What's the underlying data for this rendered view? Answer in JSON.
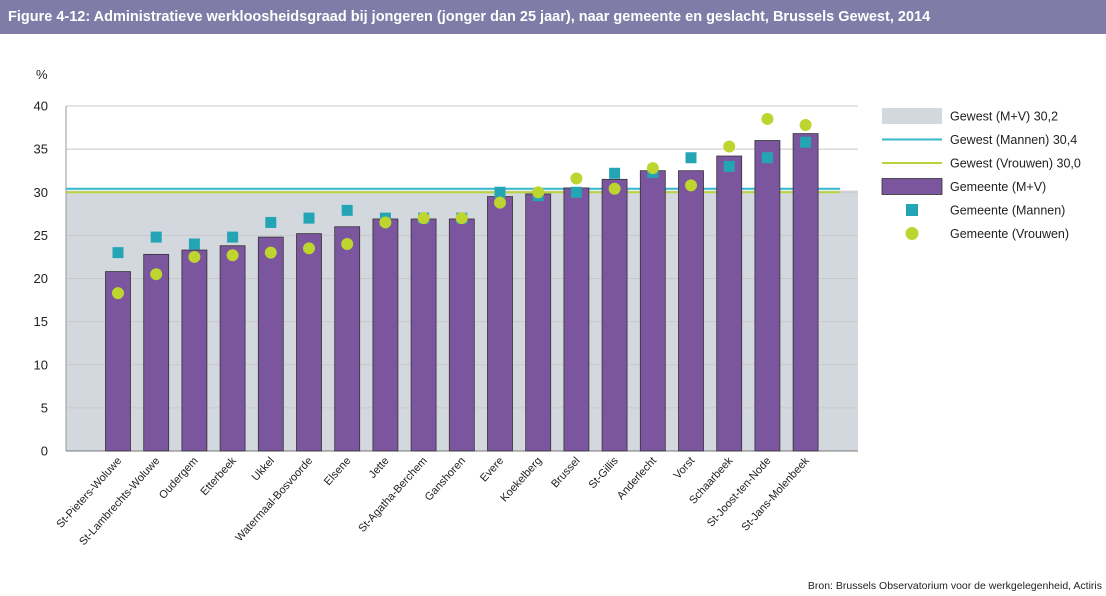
{
  "header": {
    "title": "Figure 4-12: Administratieve werkloosheidsgraad bij jongeren (jonger dan 25 jaar), naar gemeente en geslacht, Brussels Gewest, 2014"
  },
  "source": "Bron: Brussels Observatorium voor de werkgelegenheid, Actiris",
  "colors": {
    "header_bg": "#7f7da8",
    "bar": "#7b559e",
    "region_band": "#d3d8de",
    "line_men": "#33b8c9",
    "line_women": "#b7d43a",
    "marker_men": "#24a5b5",
    "marker_women": "#bed42f"
  },
  "chart_data": {
    "type": "bar",
    "title": "Figure 4-12: Administratieve werkloosheidsgraad bij jongeren (jonger dan 25 jaar), naar gemeente en geslacht, Brussels Gewest, 2014",
    "ylabel": "%",
    "xlabel": "",
    "ylim": [
      0,
      40
    ],
    "yticks": [
      0,
      5,
      10,
      15,
      20,
      25,
      30,
      35,
      40
    ],
    "grid": true,
    "legend_position": "right",
    "categories": [
      "St-Pieters-Woluwe",
      "St-Lambrechts-Woluwe",
      "Oudergem",
      "Etterbeek",
      "Ukkel",
      "Watermaal-Bosvoorde",
      "Elsene",
      "Jette",
      "St-Agatha-Berchem",
      "Ganshoren",
      "Evere",
      "Koekelberg",
      "Brussel",
      "St-Gillis",
      "Anderlecht",
      "Vorst",
      "Schaarbeek",
      "St-Joost-ten-Node",
      "St-Jans-Molenbeek"
    ],
    "series": [
      {
        "name": "Gemeente (M+V)",
        "kind": "bar",
        "values": [
          20.8,
          22.8,
          23.3,
          23.8,
          24.8,
          25.2,
          26.0,
          26.9,
          26.9,
          26.9,
          29.5,
          29.8,
          30.5,
          31.5,
          32.5,
          32.5,
          34.2,
          36.0,
          36.8
        ]
      },
      {
        "name": "Gemeente (Mannen)",
        "kind": "square",
        "values": [
          23.0,
          24.8,
          24.0,
          24.8,
          26.5,
          27.0,
          27.9,
          27.0,
          27.0,
          27.0,
          30.0,
          29.6,
          30.0,
          32.2,
          32.3,
          34.0,
          33.0,
          34.0,
          35.8
        ]
      },
      {
        "name": "Gemeente (Vrouwen)",
        "kind": "circle",
        "values": [
          18.3,
          20.5,
          22.5,
          22.7,
          23.0,
          23.5,
          24.0,
          26.5,
          27.0,
          27.0,
          28.8,
          30.0,
          31.6,
          30.4,
          32.8,
          30.8,
          35.3,
          38.5,
          37.8
        ]
      }
    ],
    "reference_lines": [
      {
        "name": "Gewest (M+V) 30,2",
        "kind": "band",
        "value": 30.2
      },
      {
        "name": "Gewest (Mannen) 30,4",
        "kind": "line",
        "value": 30.4
      },
      {
        "name": "Gewest (Vrouwen) 30,0",
        "kind": "line",
        "value": 30.0
      }
    ],
    "legend": [
      "Gewest (M+V) 30,2",
      "Gewest (Mannen) 30,4",
      "Gewest (Vrouwen) 30,0",
      "Gemeente (M+V)",
      "Gemeente (Mannen)",
      "Gemeente (Vrouwen)"
    ]
  }
}
